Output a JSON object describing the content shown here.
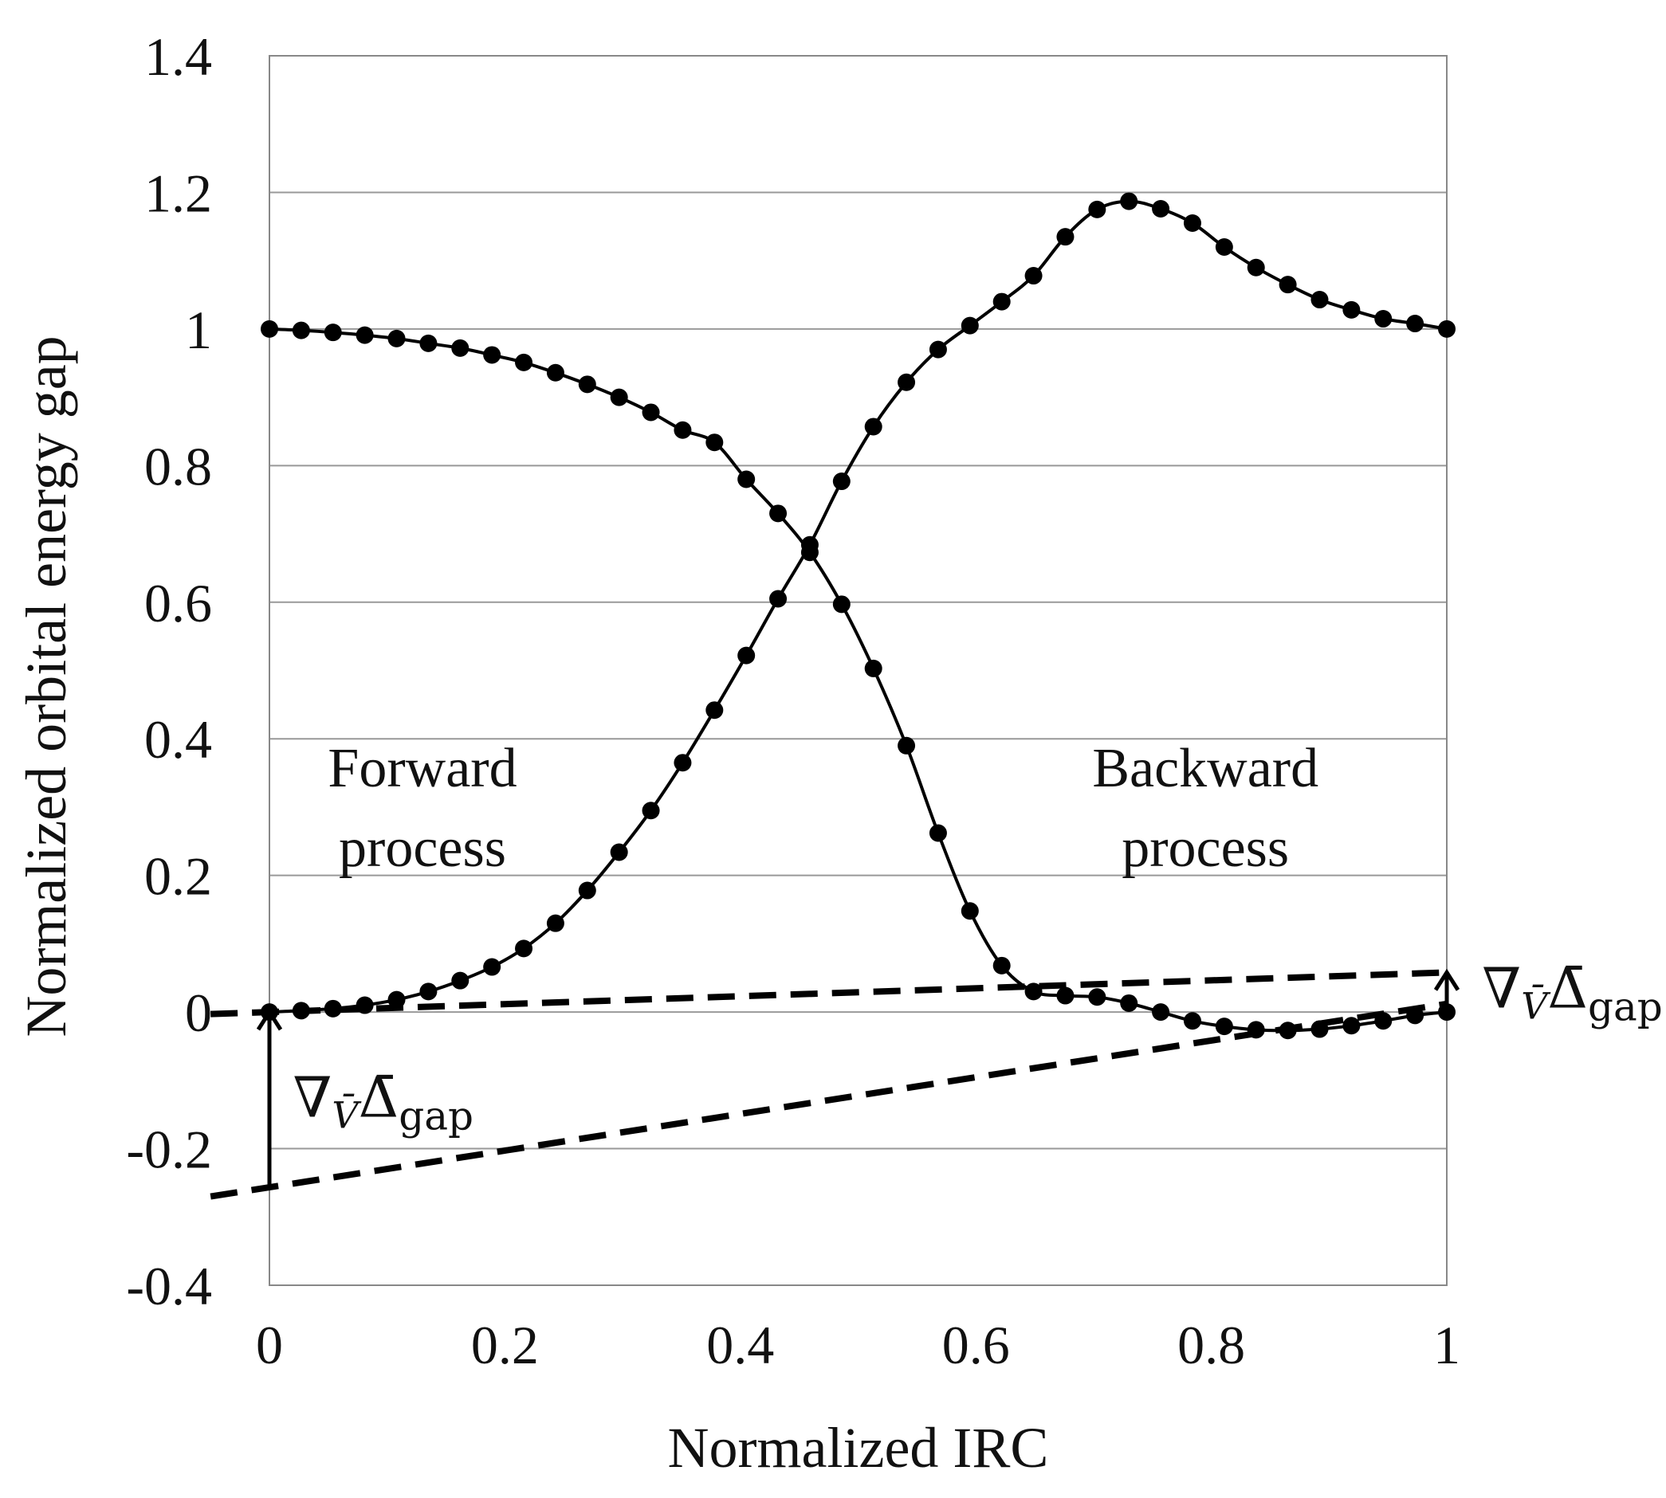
{
  "chart_data": {
    "type": "line",
    "xlabel": "Normalized IRC",
    "ylabel": "Normalized orbital energy gap",
    "xlim": [
      0,
      1
    ],
    "ylim": [
      -0.4,
      1.4
    ],
    "x_ticks": [
      "0",
      "0.2",
      "0.4",
      "0.6",
      "0.8",
      "1"
    ],
    "y_ticks": [
      "1.4",
      "1.2",
      "1",
      "0.8",
      "0.6",
      "0.4",
      "0.2",
      "0",
      "-0.2",
      "-0.4"
    ],
    "grid": "horizontal",
    "series": [
      {
        "x": [
          0,
          0.027,
          0.054,
          0.081,
          0.108,
          0.135,
          0.162,
          0.189,
          0.216,
          0.243,
          0.27,
          0.297,
          0.324,
          0.351,
          0.378,
          0.405,
          0.432,
          0.459,
          0.486,
          0.513,
          0.541,
          0.568,
          0.595,
          0.622,
          0.649,
          0.676,
          0.703,
          0.73,
          0.757,
          0.784,
          0.811,
          0.838,
          0.865,
          0.892,
          0.919,
          0.946,
          0.973,
          1.0
        ],
        "values": [
          1.0,
          0.998,
          0.995,
          0.991,
          0.986,
          0.979,
          0.972,
          0.962,
          0.951,
          0.936,
          0.919,
          0.9,
          0.878,
          0.852,
          0.834,
          0.78,
          0.73,
          0.673,
          0.597,
          0.503,
          0.39,
          0.262,
          0.148,
          0.068,
          0.03,
          0.024,
          0.022,
          0.013,
          0.0,
          -0.013,
          -0.021,
          -0.026,
          -0.027,
          -0.025,
          -0.02,
          -0.013,
          -0.005,
          0.0
        ]
      },
      {
        "x": [
          0,
          0.027,
          0.054,
          0.081,
          0.108,
          0.135,
          0.162,
          0.189,
          0.216,
          0.243,
          0.27,
          0.297,
          0.324,
          0.351,
          0.378,
          0.405,
          0.432,
          0.459,
          0.486,
          0.513,
          0.541,
          0.568,
          0.595,
          0.622,
          0.649,
          0.676,
          0.703,
          0.73,
          0.757,
          0.784,
          0.811,
          0.838,
          0.865,
          0.892,
          0.919,
          0.946,
          0.973,
          1.0
        ],
        "values": [
          0.0,
          0.002,
          0.005,
          0.01,
          0.018,
          0.03,
          0.046,
          0.066,
          0.093,
          0.13,
          0.178,
          0.234,
          0.295,
          0.365,
          0.442,
          0.522,
          0.605,
          0.684,
          0.777,
          0.857,
          0.922,
          0.97,
          1.005,
          1.04,
          1.078,
          1.135,
          1.175,
          1.187,
          1.176,
          1.155,
          1.12,
          1.09,
          1.065,
          1.043,
          1.028,
          1.015,
          1.008,
          1.0
        ]
      }
    ],
    "tangent_lines": [
      {
        "x": [
          -0.05,
          1.0
        ],
        "values": [
          -0.003,
          0.058
        ]
      },
      {
        "x": [
          -0.05,
          1.0
        ],
        "values": [
          -0.27,
          0.012
        ]
      }
    ],
    "annotations": [
      {
        "text": "Forward\nprocess",
        "lines": [
          "Forward",
          "process"
        ],
        "x": 0.13,
        "y": 0.33
      },
      {
        "text": "Backward\nprocess",
        "lines": [
          "Backward",
          "process"
        ],
        "x": 0.795,
        "y": 0.33
      },
      {
        "text": "∇V̄Δ̄gap",
        "base": "∇",
        "sub1": "V̄",
        "delta": "Δ̄",
        "sub2": "gap",
        "x": 0.02,
        "y": -0.13,
        "arrow_from": -0.26,
        "arrow_to": 0.0
      },
      {
        "text": "∇V̄Δ̄gap",
        "base": "∇",
        "sub1": "V̄",
        "delta": "Δ̄",
        "sub2": "gap",
        "x": 1.03,
        "y": 0.03,
        "arrow_from": 0.01,
        "arrow_to": 0.058
      }
    ]
  }
}
